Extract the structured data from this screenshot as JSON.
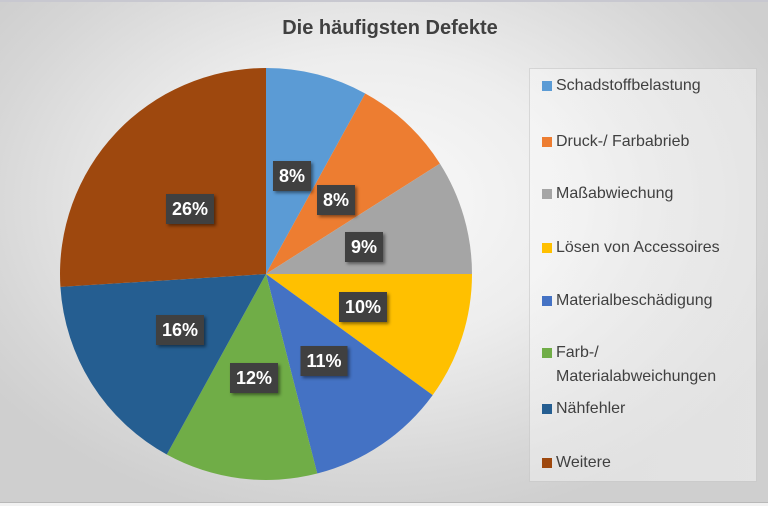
{
  "chart_data": {
    "type": "pie",
    "title": "Die häufigsten Defekte",
    "categories": [
      "Schadstoffbelastung",
      "Druck-/ Farbabrieb",
      "Maßabwiechung",
      "Lösen von Accessoires",
      "Materialbeschädigung",
      "Farb-/ Materialabweichungen",
      "Nähfehler",
      "Weitere"
    ],
    "values": [
      8,
      8,
      9,
      10,
      11,
      12,
      16,
      26
    ],
    "labels": [
      "8%",
      "8%",
      "9%",
      "10%",
      "11%",
      "12%",
      "16%",
      "26%"
    ],
    "colors": [
      "#5B9BD5",
      "#ED7D31",
      "#A5A5A5",
      "#FFC000",
      "#4472C4",
      "#70AD47",
      "#255E91",
      "#9E480E"
    ],
    "legend_position": "right",
    "start_angle": 0,
    "direction": "clockwise"
  },
  "legend": {
    "items": [
      {
        "label": "Schadstoffbelastung",
        "color": "#5B9BD5"
      },
      {
        "label": "Druck-/ Farbabrieb",
        "color": "#ED7D31"
      },
      {
        "label": "Maßabwiechung",
        "color": "#A5A5A5"
      },
      {
        "label": "Lösen von Accessoires",
        "color": "#FFC000"
      },
      {
        "label": "Materialbeschädigung",
        "color": "#4472C4"
      },
      {
        "label": "Farb-/\nMaterialabweichungen",
        "color": "#70AD47"
      },
      {
        "label": "Nähfehler",
        "color": "#255E91"
      },
      {
        "label": "Weitere",
        "color": "#9E480E"
      }
    ]
  }
}
